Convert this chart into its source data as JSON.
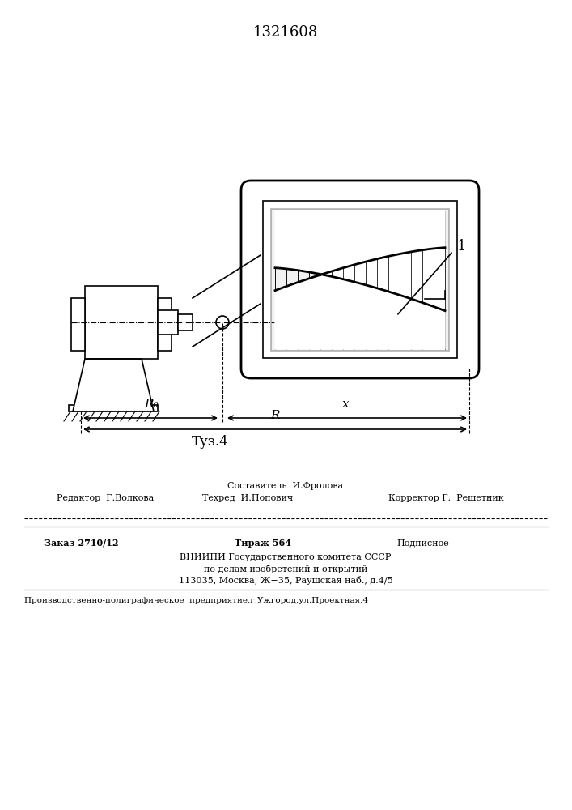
{
  "title_patent": "1321608",
  "fig_label": "Τуз.4",
  "label_1": "1",
  "label_R0": "R₀",
  "label_x": "x",
  "label_R": "R",
  "bg_color": "#ffffff",
  "line_color": "#000000",
  "hatch_color": "#555555",
  "line_width": 1.2,
  "thick_line": 2.0,
  "editor_line": "Редактор  Г.Волкова",
  "composer_line": "Составитель  И.Фролова",
  "techred_line": "Техред  И.Попович",
  "corrector_line": "Корректор Г.  Решетник",
  "order_line": "Заказ 2710/12",
  "tirazh_line": "Тираж 564",
  "podpisnoe_line": "Подписное",
  "vniip_line1": "ВНИИПИ Государственного комитета СССР",
  "vniip_line2": "по делам изобретений и открытий",
  "vniip_line3": "113035, Москва, Ж−35, Раушская наб., д.4/5",
  "prod_line": "Производственно-полиграфическое  предприятие,г.Ужгород,ул.Проектная,4"
}
